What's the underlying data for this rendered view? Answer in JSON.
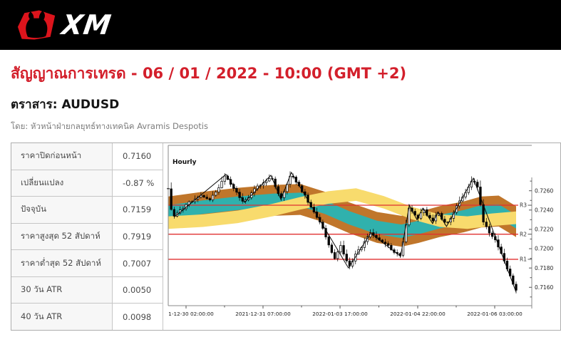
{
  "header": {
    "logo_text": "XM",
    "brand_red": "#dc141c",
    "bg": "#000000"
  },
  "signal": {
    "title": "สัญญาณการเทรด - 06 / 01 / 2022 - 10:00 (GMT +2)",
    "title_color": "#d31f2b",
    "instrument_label": "ตราสาร: AUDUSD",
    "byline": "โดย: หัวหน้าฝ่ายกลยุทธ์ทางเทคนิค Avramis Despotis"
  },
  "stats_table": {
    "rows": [
      {
        "label": "ราคาปิดก่อนหน้า",
        "value": "0.7160"
      },
      {
        "label": "เปลี่ยนแปลง",
        "value": "-0.87 %"
      },
      {
        "label": "ปัจจุบัน",
        "value": "0.7159"
      },
      {
        "label": "ราคาสูงสุด 52 สัปดาห์",
        "value": "0.7919"
      },
      {
        "label": "ราคาต่ำสุด 52 สัปดาห์",
        "value": "0.7007"
      },
      {
        "label": "30 วัน ATR",
        "value": "0.0050"
      },
      {
        "label": "40 วัน ATR",
        "value": "0.0098"
      }
    ]
  },
  "chart_data": {
    "type": "candlestick",
    "symbol": "AUDUSD",
    "timeframe_label": "Hourly",
    "price_range": [
      0.7141,
      0.7307
    ],
    "y_ticks": [
      0.716,
      0.718,
      0.72,
      0.722,
      0.724,
      0.726
    ],
    "x_tick_labels": [
      "2021-12-30 02:00:00",
      "2021-12-31 07:00:00",
      "2022-01-03 17:00:00",
      "2022-01-04 22:00:00",
      "2022-01-06 03:00:00"
    ],
    "x_tick_positions": [
      0.0512,
      0.2725,
      0.4939,
      0.7172,
      0.9385
    ],
    "resistance_levels": [
      {
        "label": "R1",
        "price": 0.7189
      },
      {
        "label": "R2",
        "price": 0.7215
      },
      {
        "label": "R3",
        "price": 0.7245
      }
    ],
    "level_color": "#e03131",
    "candle_count": 118,
    "candle_up_color": "#ffffff",
    "candle_down_color": "#000000",
    "close_path": [
      [
        0.0,
        0.7262
      ],
      [
        0.008,
        0.724
      ],
      [
        0.018,
        0.7233
      ],
      [
        0.05,
        0.7245
      ],
      [
        0.09,
        0.7256
      ],
      [
        0.12,
        0.725
      ],
      [
        0.166,
        0.7276
      ],
      [
        0.19,
        0.726
      ],
      [
        0.219,
        0.7248
      ],
      [
        0.25,
        0.7262
      ],
      [
        0.295,
        0.7275
      ],
      [
        0.324,
        0.7251
      ],
      [
        0.354,
        0.7278
      ],
      [
        0.4,
        0.725
      ],
      [
        0.44,
        0.7225
      ],
      [
        0.477,
        0.719
      ],
      [
        0.497,
        0.7203
      ],
      [
        0.518,
        0.7181
      ],
      [
        0.545,
        0.7197
      ],
      [
        0.582,
        0.7216
      ],
      [
        0.62,
        0.7206
      ],
      [
        0.668,
        0.7192
      ],
      [
        0.693,
        0.7244
      ],
      [
        0.715,
        0.7231
      ],
      [
        0.732,
        0.7242
      ],
      [
        0.76,
        0.7227
      ],
      [
        0.775,
        0.7238
      ],
      [
        0.8,
        0.7224
      ],
      [
        0.835,
        0.7247
      ],
      [
        0.858,
        0.726
      ],
      [
        0.877,
        0.7272
      ],
      [
        0.89,
        0.7262
      ],
      [
        0.906,
        0.7228
      ],
      [
        0.925,
        0.7216
      ],
      [
        0.945,
        0.7206
      ],
      [
        0.965,
        0.7188
      ],
      [
        0.982,
        0.7172
      ],
      [
        1.0,
        0.7157
      ]
    ],
    "zigzag": [
      [
        0.018,
        0.7233
      ],
      [
        0.166,
        0.7277
      ],
      [
        0.219,
        0.7248
      ],
      [
        0.295,
        0.7276
      ],
      [
        0.324,
        0.7251
      ],
      [
        0.354,
        0.7279
      ],
      [
        0.518,
        0.718
      ],
      [
        0.582,
        0.7216
      ],
      [
        0.668,
        0.7192
      ],
      [
        0.693,
        0.7245
      ],
      [
        0.715,
        0.723
      ],
      [
        0.732,
        0.7242
      ],
      [
        0.76,
        0.7226
      ],
      [
        0.775,
        0.7238
      ],
      [
        0.8,
        0.7223
      ],
      [
        0.877,
        0.7273
      ],
      [
        1.0,
        0.7155
      ]
    ],
    "bands": [
      {
        "name": "envelope-outer",
        "color": "#c0762b",
        "half_width": 0.0016,
        "path": [
          [
            0,
            0.7238
          ],
          [
            0.1,
            0.7243
          ],
          [
            0.2,
            0.7247
          ],
          [
            0.3,
            0.725
          ],
          [
            0.38,
            0.7251
          ],
          [
            0.45,
            0.7243
          ],
          [
            0.52,
            0.7232
          ],
          [
            0.6,
            0.7222
          ],
          [
            0.67,
            0.7218
          ],
          [
            0.72,
            0.7222
          ],
          [
            0.78,
            0.7228
          ],
          [
            0.85,
            0.7233
          ],
          [
            0.9,
            0.7238
          ],
          [
            0.95,
            0.7239
          ],
          [
            1,
            0.7228
          ]
        ]
      },
      {
        "name": "envelope-inner",
        "color": "#30b1ad",
        "half_width": 0.0007,
        "path": [
          [
            0,
            0.7238
          ],
          [
            0.1,
            0.7243
          ],
          [
            0.2,
            0.7247
          ],
          [
            0.3,
            0.725
          ],
          [
            0.38,
            0.7251
          ],
          [
            0.45,
            0.7243
          ],
          [
            0.52,
            0.7232
          ],
          [
            0.6,
            0.7222
          ],
          [
            0.67,
            0.7218
          ],
          [
            0.72,
            0.7222
          ],
          [
            0.78,
            0.7228
          ],
          [
            0.85,
            0.7233
          ],
          [
            0.9,
            0.7238
          ],
          [
            0.95,
            0.7239
          ],
          [
            1,
            0.7228
          ]
        ]
      },
      {
        "name": "slow-band",
        "color": "#f8db6d",
        "half_width": 0.00065,
        "path": [
          [
            0,
            0.7227
          ],
          [
            0.1,
            0.7229
          ],
          [
            0.2,
            0.7233
          ],
          [
            0.3,
            0.724
          ],
          [
            0.38,
            0.7247
          ],
          [
            0.46,
            0.7253
          ],
          [
            0.54,
            0.7256
          ],
          [
            0.62,
            0.7248
          ],
          [
            0.7,
            0.7237
          ],
          [
            0.78,
            0.7229
          ],
          [
            0.86,
            0.7227
          ],
          [
            0.93,
            0.723
          ],
          [
            1,
            0.7232
          ]
        ]
      }
    ]
  }
}
